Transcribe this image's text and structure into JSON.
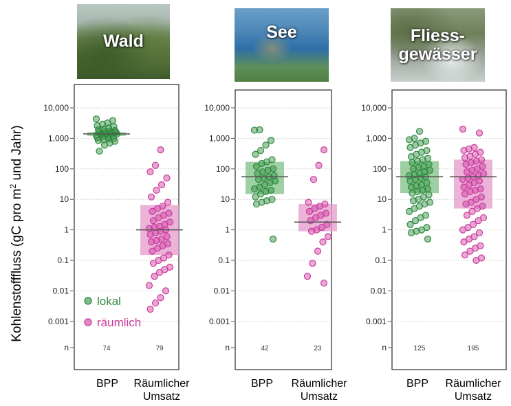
{
  "ylabel": {
    "main": "Kohlenstofffluss (gC pro m",
    "sup": "2",
    "rest": " und Jahr)"
  },
  "y_ticks": [
    "10,000",
    "1,000",
    "100",
    "10",
    "1",
    "0.1",
    "0.01",
    "0.001",
    "n"
  ],
  "legend": {
    "local": "lokal",
    "spatial": "räumlich"
  },
  "categories": {
    "bpp": "BPP",
    "turnover_line1": "Räumlicher",
    "turnover_line2": "Umsatz"
  },
  "colors": {
    "bpp": "#2e8b3e",
    "turnover": "#cc3b9e",
    "bpp_box": "#7fbf85",
    "turnover_box": "#e49acb"
  },
  "chart_data": [
    {
      "type": "scatter",
      "title": "Wald",
      "ylabel": "Kohlenstofffluss (gC pro m2 und Jahr)",
      "yscale": "log",
      "ylim": [
        0.001,
        10000
      ],
      "categories": [
        "BPP",
        "Räumlicher Umsatz"
      ],
      "series": [
        {
          "name": "lokal",
          "n": 74,
          "median": 1400,
          "q1": 1200,
          "q3": 1600,
          "values": [
            4300,
            3800,
            3200,
            2900,
            2600,
            2400,
            2200,
            2000,
            1900,
            1800,
            1750,
            1700,
            1650,
            1600,
            1550,
            1500,
            1450,
            1400,
            1380,
            1350,
            1300,
            1250,
            1200,
            1150,
            1100,
            1050,
            1000,
            950,
            900,
            850,
            800,
            700,
            600,
            380
          ]
        },
        {
          "name": "räumlich",
          "n": 79,
          "median": 1.0,
          "q1": 0.15,
          "q3": 6.5,
          "values": [
            420,
            130,
            80,
            50,
            30,
            20,
            12,
            8,
            6,
            5,
            4,
            3.5,
            3,
            2.5,
            2,
            1.8,
            1.5,
            1.3,
            1.2,
            1.1,
            1.0,
            0.9,
            0.8,
            0.7,
            0.6,
            0.5,
            0.45,
            0.4,
            0.35,
            0.3,
            0.25,
            0.2,
            0.15,
            0.12,
            0.1,
            0.08,
            0.06,
            0.05,
            0.04,
            0.03,
            0.015,
            0.01,
            0.006,
            0.004,
            0.0025
          ]
        }
      ]
    },
    {
      "type": "scatter",
      "title": "See",
      "yscale": "log",
      "ylim": [
        0.001,
        10000
      ],
      "categories": [
        "BPP",
        "Räumlicher Umsatz"
      ],
      "series": [
        {
          "name": "lokal",
          "n": 42,
          "median": 55,
          "q1": 15,
          "q3": 170,
          "values": [
            1900,
            1850,
            850,
            600,
            400,
            300,
            200,
            170,
            150,
            120,
            100,
            90,
            80,
            70,
            60,
            55,
            50,
            45,
            40,
            35,
            30,
            25,
            22,
            20,
            18,
            15,
            12,
            10,
            9,
            8,
            7,
            0.5
          ]
        },
        {
          "name": "räumlich",
          "n": 23,
          "median": 1.8,
          "q1": 0.9,
          "q3": 7,
          "values": [
            420,
            130,
            45,
            8,
            7,
            6,
            5,
            4,
            3.5,
            3,
            2.5,
            2,
            1.5,
            1.2,
            1.0,
            0.9,
            0.6,
            0.4,
            0.2,
            0.08,
            0.03,
            0.018
          ]
        }
      ]
    },
    {
      "type": "scatter",
      "title": "Fliess-gewässer",
      "title_lines": [
        "Fliess-",
        "gewässer"
      ],
      "yscale": "log",
      "ylim": [
        0.001,
        10000
      ],
      "categories": [
        "BPP",
        "Räumlicher Umsatz"
      ],
      "series": [
        {
          "name": "lokal",
          "n": 125,
          "median": 55,
          "q1": 16,
          "q3": 180,
          "values": [
            1700,
            1000,
            900,
            800,
            700,
            600,
            500,
            400,
            350,
            300,
            250,
            220,
            200,
            180,
            160,
            140,
            120,
            110,
            100,
            90,
            80,
            70,
            65,
            60,
            55,
            50,
            45,
            40,
            35,
            30,
            28,
            25,
            22,
            20,
            18,
            16,
            14,
            12,
            10,
            9,
            8,
            7,
            6,
            5,
            4,
            3,
            2.5,
            2,
            1.5,
            1.2,
            1.0,
            0.9,
            0.8,
            0.5
          ]
        },
        {
          "name": "räumlich",
          "n": 195,
          "median": 55,
          "q1": 5,
          "q3": 200,
          "values": [
            2000,
            1500,
            500,
            450,
            400,
            350,
            300,
            260,
            230,
            200,
            180,
            160,
            140,
            120,
            100,
            90,
            80,
            70,
            60,
            55,
            50,
            45,
            40,
            35,
            30,
            25,
            22,
            20,
            18,
            15,
            12,
            10,
            8,
            7,
            6,
            5,
            4,
            3,
            2.5,
            2,
            1.5,
            1.2,
            1.0,
            0.8,
            0.6,
            0.5,
            0.4,
            0.3,
            0.25,
            0.2,
            0.15,
            0.12,
            0.1
          ]
        }
      ]
    }
  ]
}
